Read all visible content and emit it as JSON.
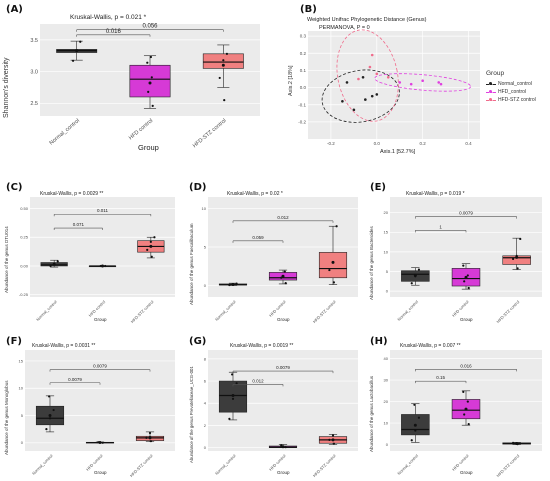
{
  "panels": [
    {
      "id": "A",
      "label": "(A)",
      "type": "box",
      "stat": "Kruskal-Wallis,  p =  0.021 *",
      "ylabel": "Shannon's diversity",
      "xlabel": "Group",
      "ylim": [
        2.3,
        3.75
      ],
      "yticks": [
        "2.5",
        "3.0",
        "3.5"
      ],
      "categories": [
        "Normal_control",
        "HFD control",
        "HFD-STZ control"
      ],
      "colors": [
        "#3c3c3c",
        "#d63ad6",
        "#f08080"
      ],
      "boxes": [
        {
          "q1": 3.3,
          "median": 3.33,
          "q3": 3.35,
          "lo": 3.18,
          "hi": 3.48,
          "mean": 3.33,
          "points": [
            3.17,
            3.33,
            3.47
          ]
        },
        {
          "q1": 2.6,
          "median": 2.88,
          "q3": 3.1,
          "lo": 2.42,
          "hi": 3.25,
          "mean": 2.82,
          "points": [
            2.46,
            2.68,
            2.91,
            3.14,
            3.23
          ]
        },
        {
          "q1": 3.05,
          "median": 3.15,
          "q3": 3.28,
          "lo": 2.75,
          "hi": 3.42,
          "mean": 3.1,
          "points": [
            2.55,
            2.9,
            3.18,
            3.28
          ]
        }
      ],
      "comparisons": [
        {
          "from": 0,
          "to": 1,
          "label": "0.016",
          "y": 3.58
        },
        {
          "from": 0,
          "to": 2,
          "label": "0.056",
          "y": 3.66
        }
      ]
    },
    {
      "id": "B",
      "label": "(B)",
      "type": "ordination",
      "title": "Weighted Unifrac Phylogenetic Distance (Genus)",
      "stat": "PERMANOVA, P = 0",
      "xlabel": "Axis.1 [52.7%]",
      "ylabel": "Axis.2 [18%]",
      "xlim": [
        -0.3,
        0.45
      ],
      "ylim": [
        -0.3,
        0.33
      ],
      "xticks": [
        "-0.2",
        "0.0",
        "0.2",
        "0.4"
      ],
      "xtickvals": [
        -0.2,
        0,
        0.2,
        0.4
      ],
      "yticks": [
        "-0.2",
        "-0.1",
        "0.0",
        "0.1",
        "0.2",
        "0.3"
      ],
      "ytickvals": [
        -0.2,
        -0.1,
        0,
        0.1,
        0.2,
        0.3
      ],
      "legend_title": "Group",
      "groups": [
        {
          "name": "Normal_control",
          "color": "#222222",
          "ellipse": {
            "cx": -0.07,
            "cy": -0.05,
            "rx": 0.17,
            "ry": 0.15,
            "angle": 10
          },
          "points": [
            [
              -0.13,
              0.03
            ],
            [
              -0.06,
              0.06
            ],
            [
              -0.02,
              -0.05
            ],
            [
              -0.05,
              -0.07
            ],
            [
              0.0,
              -0.04
            ],
            [
              -0.15,
              -0.08
            ],
            [
              -0.1,
              -0.13
            ]
          ]
        },
        {
          "name": "HFD_control",
          "color": "#e040e0",
          "ellipse": {
            "cx": 0.2,
            "cy": 0.03,
            "rx": 0.21,
            "ry": 0.045,
            "angle": -5
          },
          "points": [
            [
              0.1,
              0.03
            ],
            [
              0.2,
              0.04
            ],
            [
              0.27,
              0.03
            ],
            [
              0.15,
              0.02
            ],
            [
              0.28,
              0.02
            ]
          ]
        },
        {
          "name": "HFD-STZ control",
          "color": "#f06c8c",
          "ellipse": {
            "cx": -0.04,
            "cy": 0.07,
            "rx": 0.13,
            "ry": 0.27,
            "angle": 12
          },
          "points": [
            [
              -0.02,
              0.19
            ],
            [
              -0.03,
              0.12
            ],
            [
              -0.08,
              0.05
            ],
            [
              0.0,
              0.08
            ],
            [
              0.05,
              0.06
            ]
          ]
        }
      ]
    },
    {
      "id": "C",
      "label": "(C)",
      "type": "box",
      "stat": "Kruskal-Wallis,  p = 0.0029 **",
      "ylabel": "Abundance of the genus DTU014",
      "xlabel": "Group",
      "ylim": [
        -0.27,
        0.6
      ],
      "yticks": [
        "-0.25",
        "0.00",
        "0.25",
        "0.50"
      ],
      "categories": [
        "Normal_control",
        "HFD control",
        "HFD-STZ control"
      ],
      "colors": [
        "#3c3c3c",
        "#d63ad6",
        "#f08080"
      ],
      "boxes": [
        {
          "q1": 0.0,
          "median": 0.01,
          "q3": 0.03,
          "lo": -0.01,
          "hi": 0.05,
          "mean": 0.015,
          "points": [
            0.0,
            0.02,
            0.04
          ]
        },
        {
          "q1": 0.0,
          "median": 0.0,
          "q3": 0.0,
          "lo": 0.0,
          "hi": 0.0,
          "mean": 0.0,
          "points": [
            0.0,
            0.0
          ]
        },
        {
          "q1": 0.12,
          "median": 0.17,
          "q3": 0.22,
          "lo": 0.07,
          "hi": 0.25,
          "mean": 0.17,
          "points": [
            0.08,
            0.14,
            0.21,
            0.25
          ]
        }
      ],
      "comparisons": [
        {
          "from": 0,
          "to": 1,
          "label": "0.071",
          "y": 0.33
        },
        {
          "from": 0,
          "to": 2,
          "label": "0.011",
          "y": 0.45
        }
      ]
    },
    {
      "id": "D",
      "label": "(D)",
      "type": "box",
      "stat": "Kruskal-Wallis,  p =  0.02 *",
      "ylabel": "Abundance of the genus Faecalibaculum",
      "xlabel": "Group",
      "ylim": [
        -1.5,
        11.5
      ],
      "yticks": [
        "0",
        "5",
        "10"
      ],
      "categories": [
        "Normal_control",
        "HFD control",
        "HFD-STZ control"
      ],
      "colors": [
        "#3c3c3c",
        "#d63ad6",
        "#f08080"
      ],
      "boxes": [
        {
          "q1": 0.05,
          "median": 0.1,
          "q3": 0.2,
          "lo": 0.0,
          "hi": 0.3,
          "mean": 0.12,
          "points": [
            0.05,
            0.1,
            0.25
          ]
        },
        {
          "q1": 0.7,
          "median": 1.0,
          "q3": 1.7,
          "lo": 0.2,
          "hi": 2.0,
          "mean": 1.2,
          "points": [
            0.3,
            1.0,
            1.8
          ]
        },
        {
          "q1": 1.0,
          "median": 2.2,
          "q3": 4.3,
          "lo": 0.1,
          "hi": 7.7,
          "mean": 3.0,
          "points": [
            0.4,
            2.0,
            3.0,
            7.7
          ]
        }
      ],
      "comparisons": [
        {
          "from": 0,
          "to": 1,
          "label": "0.059",
          "y": 5.8
        },
        {
          "from": 0,
          "to": 2,
          "label": "0.012",
          "y": 8.4
        }
      ]
    },
    {
      "id": "E",
      "label": "(E)",
      "type": "box",
      "stat": "Kruskal-Wallis,  p = 0.019 *",
      "ylabel": "Abundance of the genus Bacteroides",
      "xlabel": "Group",
      "ylim": [
        -1.5,
        24
      ],
      "yticks": [
        "0",
        "5",
        "10",
        "15",
        "20"
      ],
      "categories": [
        "Normal_control",
        "HFD control",
        "HFD-STZ control"
      ],
      "colors": [
        "#3c3c3c",
        "#d63ad6",
        "#f08080"
      ],
      "boxes": [
        {
          "q1": 2.5,
          "median": 4.3,
          "q3": 5.2,
          "lo": 1.5,
          "hi": 6.0,
          "mean": 4.0,
          "points": [
            2.0,
            3.8,
            5.5
          ]
        },
        {
          "q1": 1.3,
          "median": 3.2,
          "q3": 5.8,
          "lo": 0.5,
          "hi": 7.0,
          "mean": 3.5,
          "points": [
            0.8,
            2.5,
            4.0,
            6.5
          ]
        },
        {
          "q1": 6.8,
          "median": 8.5,
          "q3": 9.0,
          "lo": 5.5,
          "hi": 13.5,
          "mean": 8.6,
          "points": [
            5.8,
            8.2,
            9.0,
            13.3
          ]
        }
      ],
      "comparisons": [
        {
          "from": 0,
          "to": 1,
          "label": "1",
          "y": 15.5
        },
        {
          "from": 0,
          "to": 2,
          "label": "0.0079",
          "y": 19.0
        }
      ]
    },
    {
      "id": "F",
      "label": "(F)",
      "type": "box",
      "stat": "Kruskal-Wallis,  p = 0.0031 **",
      "ylabel": "Abundance of the genus Monoglobus",
      "xlabel": "Group",
      "ylim": [
        -1.5,
        17
      ],
      "yticks": [
        "0",
        "5",
        "10",
        "15"
      ],
      "categories": [
        "Normal_control",
        "HFD control",
        "HFD-STZ control"
      ],
      "colors": [
        "#3c3c3c",
        "#d63ad6",
        "#f08080"
      ],
      "boxes": [
        {
          "q1": 3.3,
          "median": 4.5,
          "q3": 6.7,
          "lo": 2.0,
          "hi": 8.6,
          "mean": 5.0,
          "points": [
            2.5,
            4.5,
            6.0,
            8.5
          ]
        },
        {
          "q1": 0.0,
          "median": 0.05,
          "q3": 0.1,
          "lo": 0.0,
          "hi": 0.15,
          "mean": 0.05,
          "points": [
            0.0,
            0.1
          ]
        },
        {
          "q1": 0.4,
          "median": 0.9,
          "q3": 1.2,
          "lo": 0.2,
          "hi": 2.0,
          "mean": 0.9,
          "points": [
            0.3,
            0.9,
            1.8
          ]
        }
      ],
      "comparisons": [
        {
          "from": 0,
          "to": 1,
          "label": "0.0079",
          "y": 11.0
        },
        {
          "from": 0,
          "to": 2,
          "label": "0.0079",
          "y": 13.4
        }
      ]
    },
    {
      "id": "G",
      "label": "(G)",
      "type": "box",
      "stat": "Kruskal-Wallis,  p = 0.0019 **",
      "ylabel": "Abundance of the genus Prevotellaceae_UCG-001",
      "xlabel": "Group",
      "ylim": [
        -0.3,
        8.8
      ],
      "yticks": [
        "0",
        "2",
        "4",
        "6",
        "8"
      ],
      "categories": [
        "Normal_control",
        "HFD control",
        "HFD-STZ control"
      ],
      "colors": [
        "#3c3c3c",
        "#d63ad6",
        "#f08080"
      ],
      "boxes": [
        {
          "q1": 3.2,
          "median": 4.7,
          "q3": 6.0,
          "lo": 2.5,
          "hi": 6.8,
          "mean": 4.7,
          "points": [
            2.6,
            4.4,
            5.8,
            6.6
          ]
        },
        {
          "q1": 0.0,
          "median": 0.05,
          "q3": 0.15,
          "lo": 0.0,
          "hi": 0.3,
          "mean": 0.08,
          "points": [
            0.05,
            0.2
          ]
        },
        {
          "q1": 0.4,
          "median": 0.7,
          "q3": 1.0,
          "lo": 0.3,
          "hi": 1.2,
          "mean": 0.7,
          "points": [
            0.35,
            0.7,
            1.1
          ]
        }
      ],
      "comparisons": [
        {
          "from": 0,
          "to": 1,
          "label": "0.012",
          "y": 5.7
        },
        {
          "from": 0,
          "to": 2,
          "label": "0.0079",
          "y": 6.9
        }
      ]
    },
    {
      "id": "H",
      "label": "(H)",
      "type": "box",
      "stat": "Kruskal-Wallis,  p = 0.007 **",
      "ylabel": "Abundance of the genus Lactobacillus",
      "xlabel": "Group",
      "ylim": [
        -3,
        44
      ],
      "yticks": [
        "0",
        "10",
        "20",
        "30",
        "40"
      ],
      "categories": [
        "Normal_control",
        "HFD control",
        "HFD-STZ control"
      ],
      "colors": [
        "#3c3c3c",
        "#d63ad6",
        "#f08080"
      ],
      "boxes": [
        {
          "q1": 4.5,
          "median": 7.0,
          "q3": 14.0,
          "lo": 1.0,
          "hi": 19.0,
          "mean": 9.0,
          "points": [
            2.0,
            6.5,
            12.5,
            18.5
          ]
        },
        {
          "q1": 12.0,
          "median": 16.0,
          "q3": 21.0,
          "lo": 9.0,
          "hi": 25.0,
          "mean": 16.5,
          "points": [
            9.5,
            14.0,
            20.0,
            24.5
          ]
        },
        {
          "q1": 0.2,
          "median": 0.5,
          "q3": 0.8,
          "lo": 0.0,
          "hi": 1.0,
          "mean": 0.5,
          "points": [
            0.2,
            0.8
          ]
        }
      ],
      "comparisons": [
        {
          "from": 0,
          "to": 1,
          "label": "0.15",
          "y": 29.5
        },
        {
          "from": 0,
          "to": 2,
          "label": "0.016",
          "y": 35.0
        }
      ]
    }
  ]
}
